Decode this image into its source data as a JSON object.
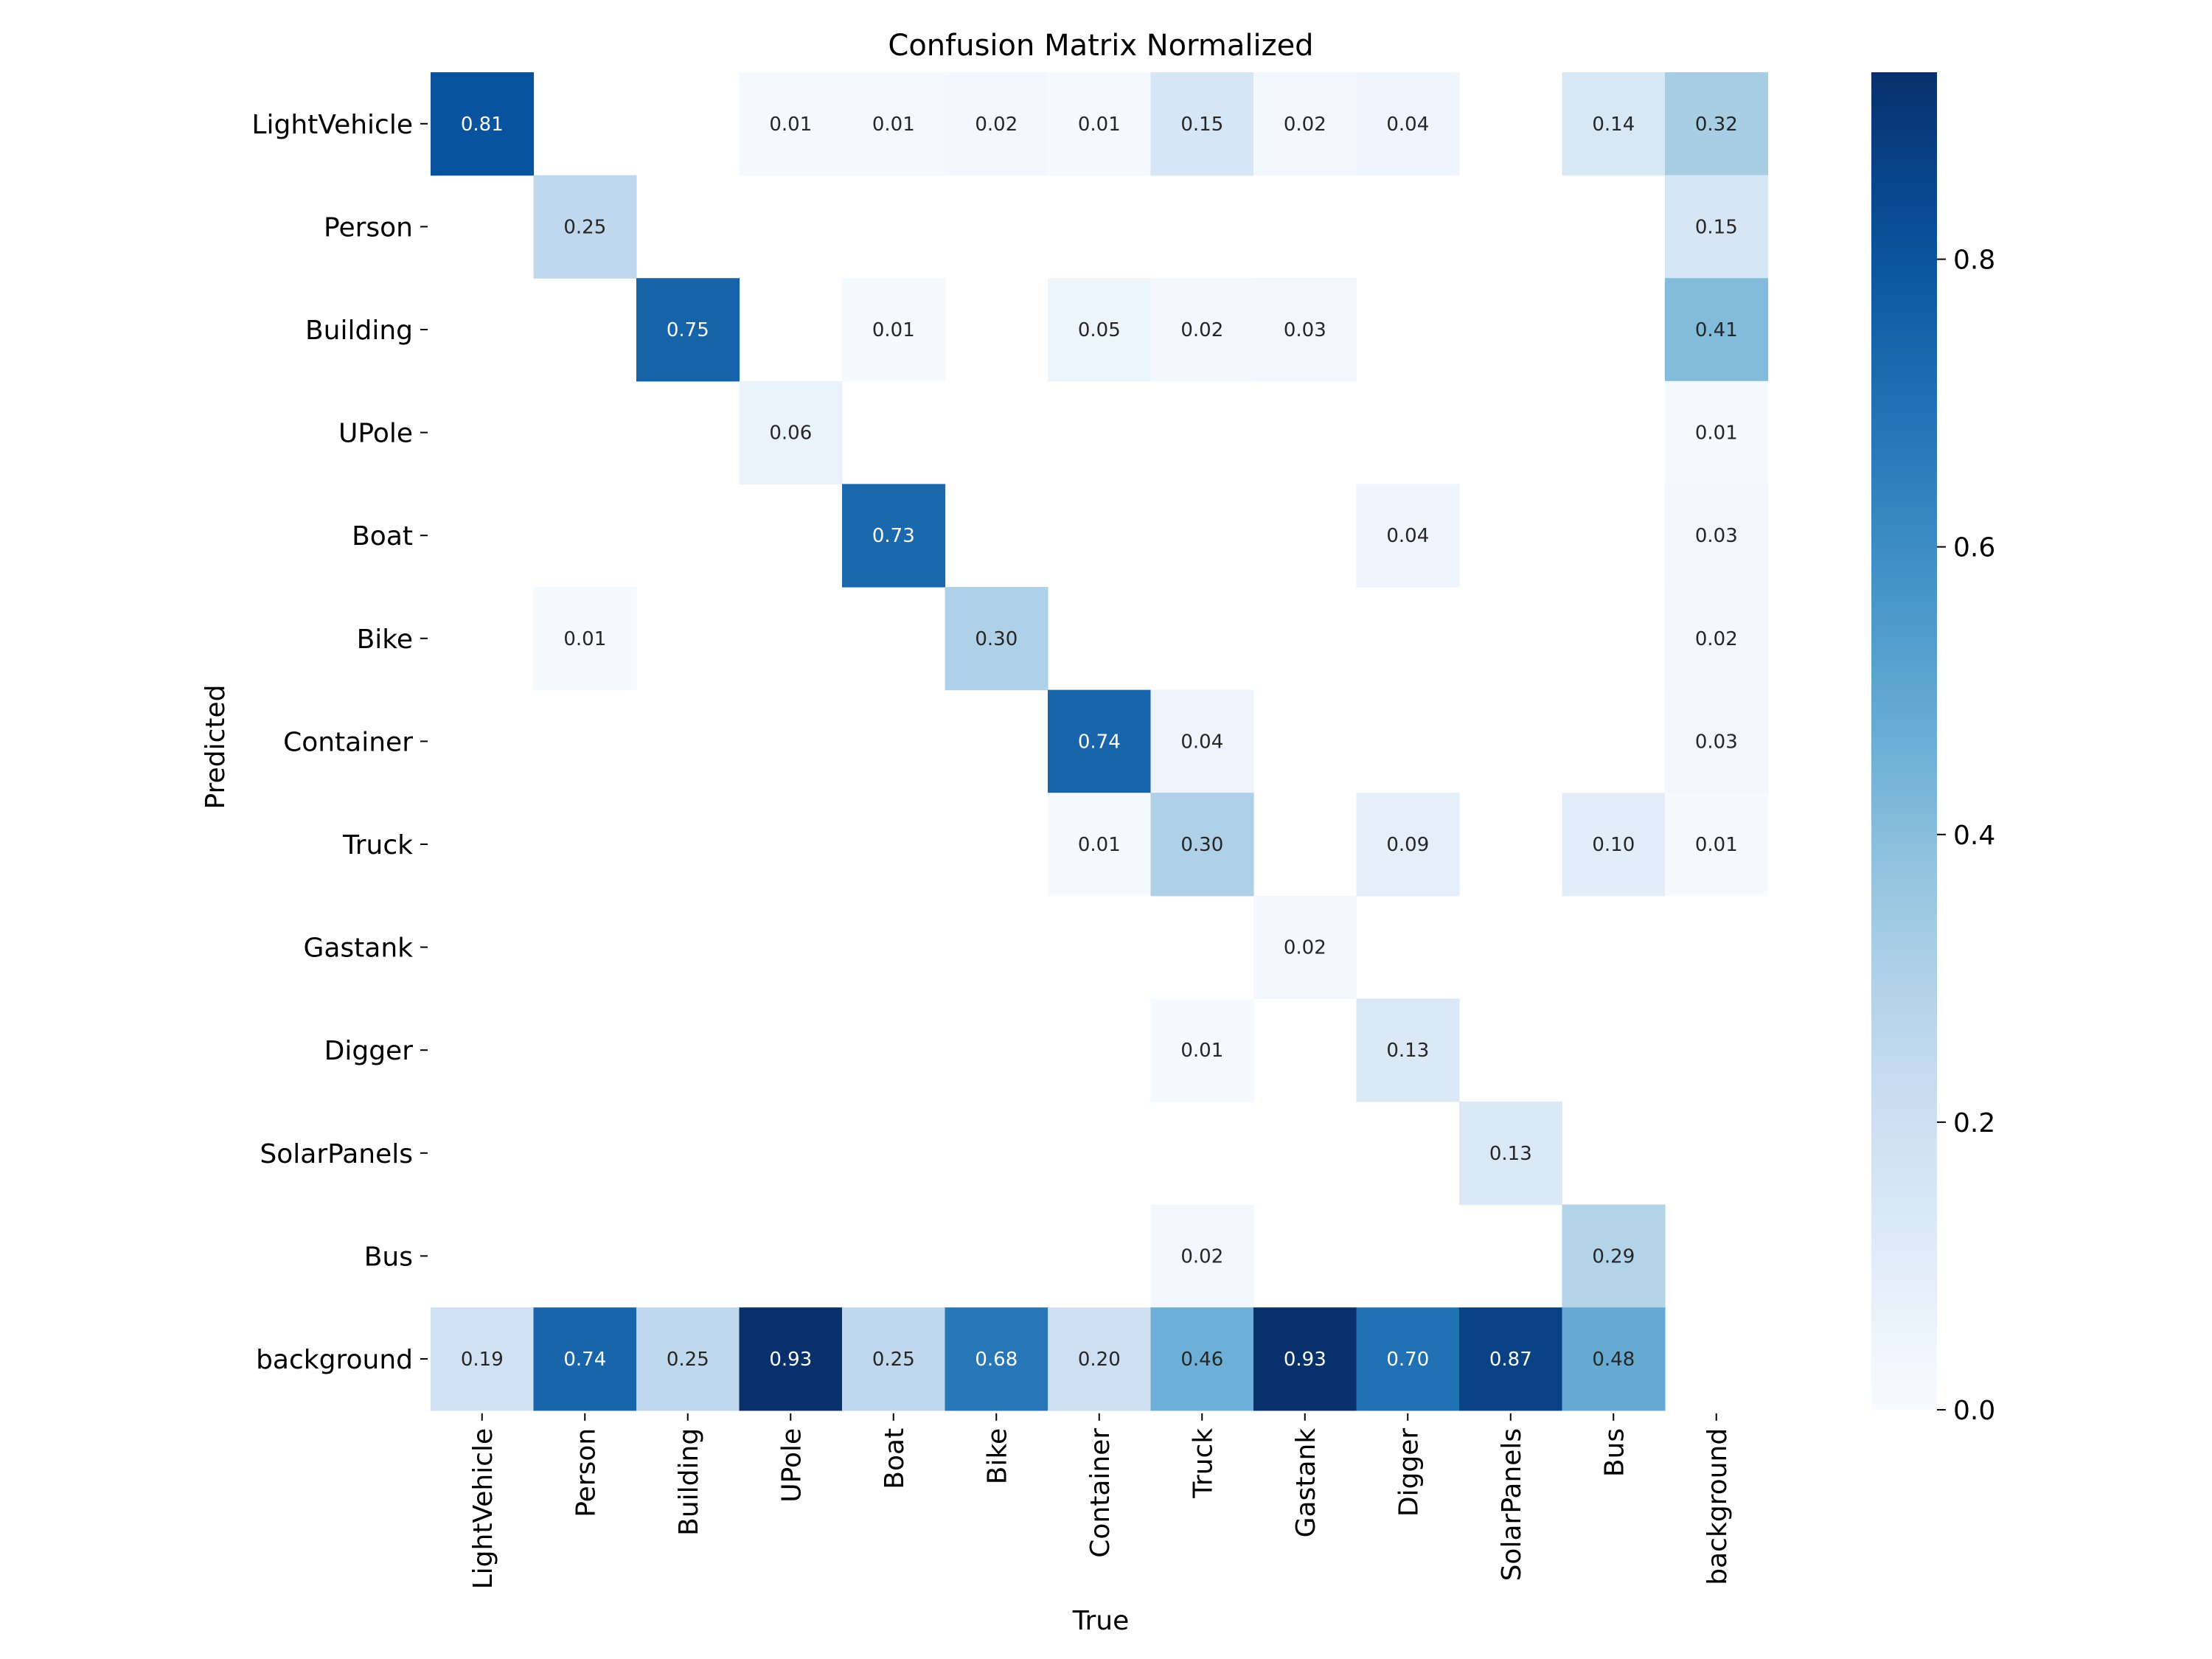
{
  "chart_data": {
    "type": "heatmap",
    "title": "Confusion Matrix Normalized",
    "xlabel": "True",
    "ylabel": "Predicted",
    "x_categories": [
      "LightVehicle",
      "Person",
      "Building",
      "UPole",
      "Boat",
      "Bike",
      "Container",
      "Truck",
      "Gastank",
      "Digger",
      "SolarPanels",
      "Bus",
      "background"
    ],
    "y_categories": [
      "LightVehicle",
      "Person",
      "Building",
      "UPole",
      "Boat",
      "Bike",
      "Container",
      "Truck",
      "Gastank",
      "Digger",
      "SolarPanels",
      "Bus",
      "background"
    ],
    "values": [
      [
        0.81,
        null,
        null,
        0.01,
        0.01,
        0.02,
        0.01,
        0.15,
        0.02,
        0.04,
        null,
        0.14,
        0.32
      ],
      [
        null,
        0.25,
        null,
        null,
        null,
        null,
        null,
        null,
        null,
        null,
        null,
        null,
        0.15
      ],
      [
        null,
        null,
        0.75,
        null,
        0.01,
        null,
        0.05,
        0.02,
        0.03,
        null,
        null,
        null,
        0.41
      ],
      [
        null,
        null,
        null,
        0.06,
        null,
        null,
        null,
        null,
        null,
        null,
        null,
        null,
        0.01
      ],
      [
        null,
        null,
        null,
        null,
        0.73,
        null,
        null,
        null,
        null,
        0.04,
        null,
        null,
        0.03
      ],
      [
        null,
        0.01,
        null,
        null,
        null,
        0.3,
        null,
        null,
        null,
        null,
        null,
        null,
        0.02
      ],
      [
        null,
        null,
        null,
        null,
        null,
        null,
        0.74,
        0.04,
        null,
        null,
        null,
        null,
        0.03
      ],
      [
        null,
        null,
        null,
        null,
        null,
        null,
        0.01,
        0.3,
        null,
        0.09,
        null,
        0.1,
        0.01
      ],
      [
        null,
        null,
        null,
        null,
        null,
        null,
        null,
        null,
        0.02,
        null,
        null,
        null,
        null
      ],
      [
        null,
        null,
        null,
        null,
        null,
        null,
        null,
        0.01,
        null,
        0.13,
        null,
        null,
        null
      ],
      [
        null,
        null,
        null,
        null,
        null,
        null,
        null,
        null,
        null,
        null,
        0.13,
        null,
        null
      ],
      [
        null,
        null,
        null,
        null,
        null,
        null,
        null,
        0.02,
        null,
        null,
        null,
        0.29,
        null
      ],
      [
        0.19,
        0.74,
        0.25,
        0.93,
        0.25,
        0.68,
        0.2,
        0.46,
        0.93,
        0.7,
        0.87,
        0.48,
        null
      ]
    ],
    "vmin": 0.0,
    "vmax": 0.93,
    "colormap": "Blues",
    "colorbar": {
      "ticks": [
        0.0,
        0.2,
        0.4,
        0.6,
        0.8
      ],
      "tick_labels": [
        "0.0",
        "0.2",
        "0.4",
        "0.6",
        "0.8"
      ]
    },
    "grid": false
  }
}
